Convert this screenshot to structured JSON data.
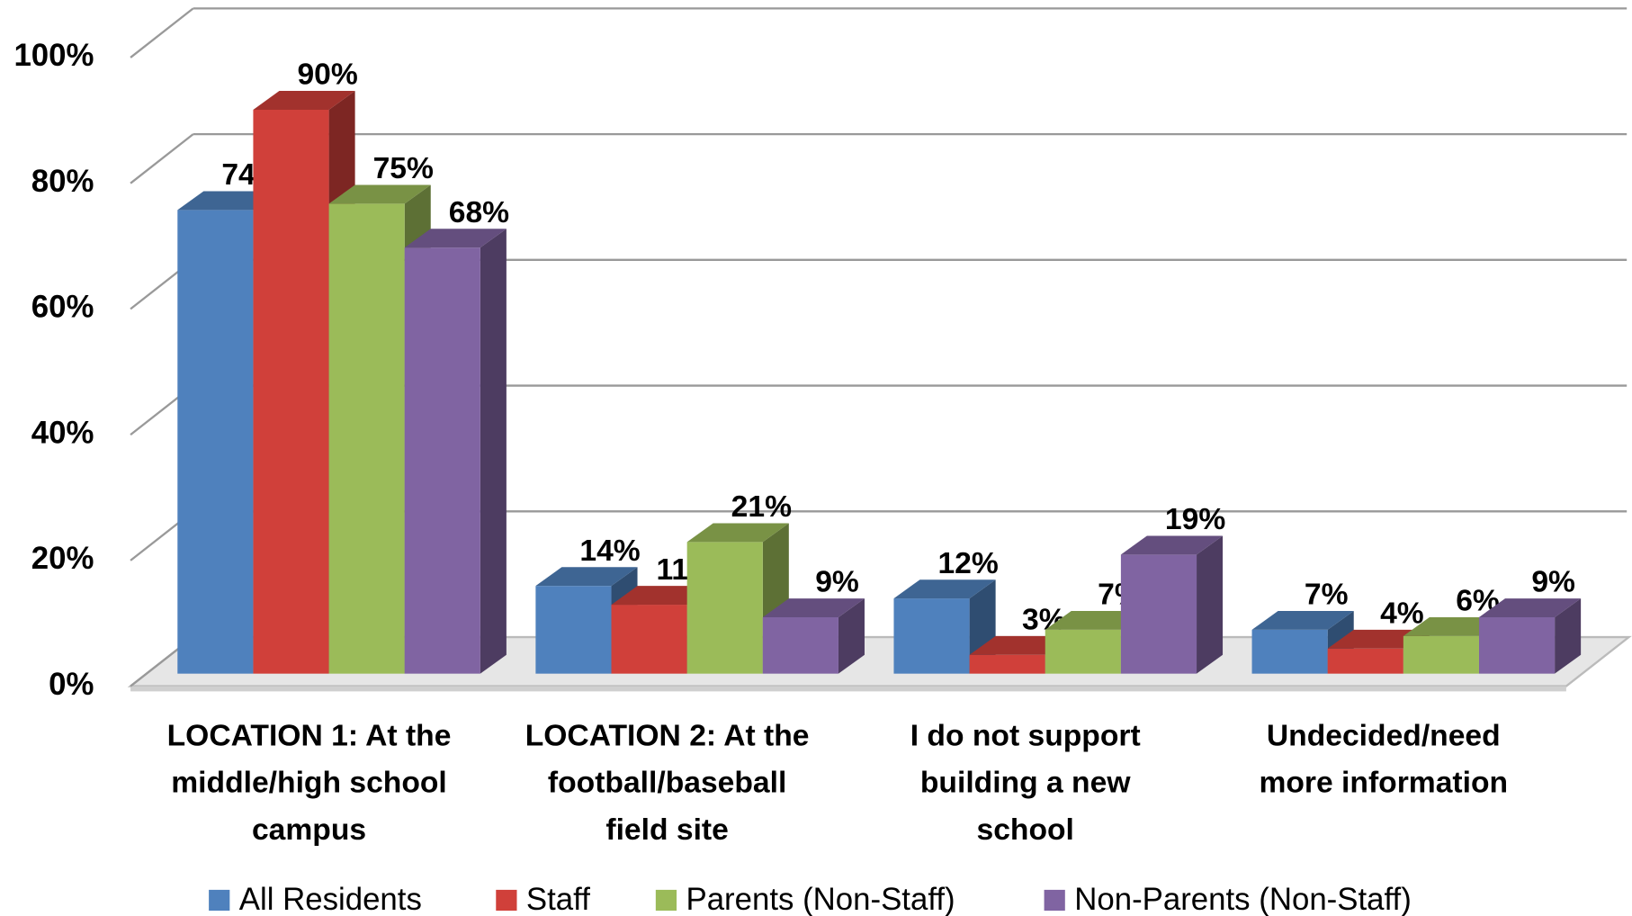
{
  "chart_data": {
    "type": "bar3d",
    "categories": [
      [
        "LOCATION 1:  At the",
        "middle/high school",
        "campus"
      ],
      [
        "LOCATION 2:  At the",
        "football/baseball",
        "field site"
      ],
      [
        "I do not support",
        "building a new",
        "school"
      ],
      [
        "Undecided/need",
        "more information"
      ]
    ],
    "series": [
      {
        "name": "All Residents",
        "color": "#4f81bd",
        "values": [
          74,
          14,
          12,
          7
        ],
        "value_labels": [
          "74%",
          "14%",
          "12%",
          "7%"
        ]
      },
      {
        "name": "Staff",
        "color": "#d0403a",
        "values": [
          90,
          11,
          3,
          4
        ],
        "value_labels": [
          "90%",
          "11%",
          "3%",
          "4%"
        ]
      },
      {
        "name": "Parents (Non-Staff)",
        "color": "#9bbb59",
        "values": [
          75,
          21,
          7,
          6
        ],
        "value_labels": [
          "75%",
          "21%",
          "7%",
          "6%"
        ]
      },
      {
        "name": "Non-Parents (Non-Staff)",
        "color": "#8064a2",
        "values": [
          68,
          9,
          19,
          9
        ],
        "value_labels": [
          "68%",
          "9%",
          "19%",
          "9%"
        ]
      }
    ],
    "ylim": [
      0,
      100
    ],
    "yticks": [
      {
        "value": 0,
        "label": "0%"
      },
      {
        "value": 20,
        "label": "20%"
      },
      {
        "value": 40,
        "label": "40%"
      },
      {
        "value": 60,
        "label": "60%"
      },
      {
        "value": 80,
        "label": "80%"
      },
      {
        "value": 100,
        "label": "100%"
      }
    ],
    "grid": true,
    "legend": "bottom"
  }
}
